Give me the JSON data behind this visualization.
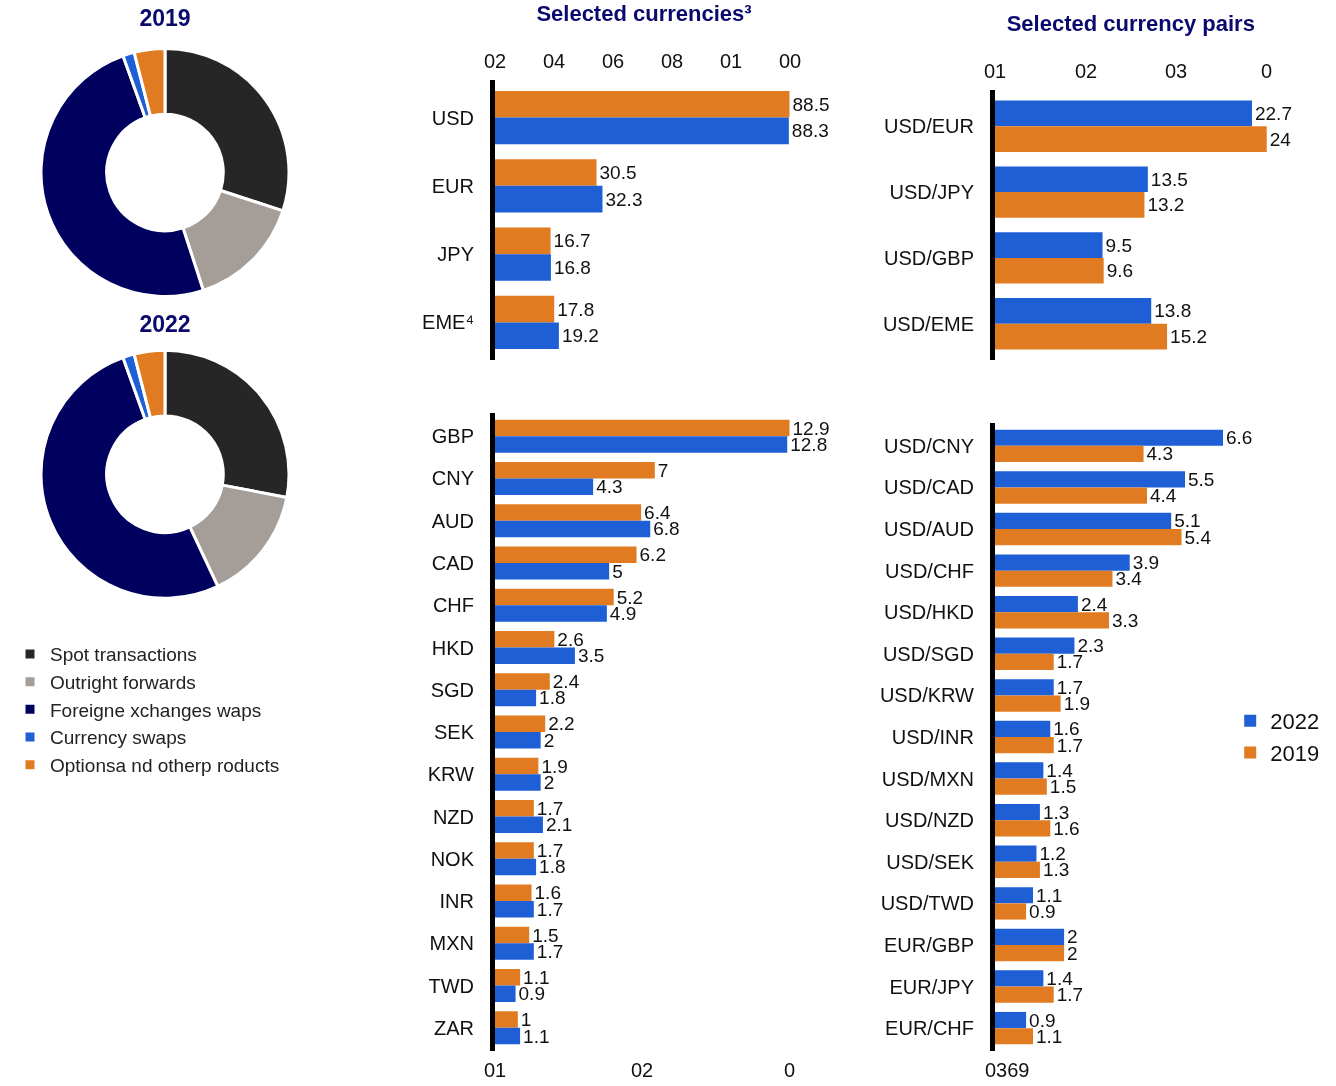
{
  "chart_data": [
    {
      "type": "donut",
      "title": "2019",
      "categories": [
        null,
        null,
        null,
        null,
        null
      ],
      "values": [
        30,
        15,
        49.5,
        1.5,
        4
      ],
      "colors": [
        "#262626",
        "#a59d98",
        "#00005e",
        "#1f5fd6",
        "#e07b21"
      ],
      "legend": false
    },
    {
      "type": "donut",
      "title": "2022",
      "categories": [
        "Spot transactions",
        "Outright forwards",
        "Foreigne xchanges waps",
        "Currency swaps",
        "Optionsa nd otherp roducts"
      ],
      "values": [
        28,
        15,
        51.5,
        1.5,
        4
      ],
      "colors": [
        "#262626",
        "#a59d98",
        "#00005e",
        "#1f5fd6",
        "#e07b21"
      ],
      "legend": "bottom"
    },
    {
      "type": "bar",
      "orientation": "horizontal",
      "title": "Selected currencies³",
      "categories": [
        "USD",
        "EUR",
        "JPY",
        "EME⁴"
      ],
      "series": [
        {
          "color": "#e07b21",
          "values": [
            88.5,
            30.5,
            16.7,
            17.8
          ]
        },
        {
          "color": "#1f5fd6",
          "values": [
            88.3,
            32.3,
            16.8,
            19.2
          ]
        }
      ],
      "annotations": [
        "02",
        "04",
        "06",
        "08",
        "01",
        "00"
      ],
      "data_labels": true,
      "legend": false
    },
    {
      "type": "bar",
      "orientation": "horizontal",
      "title": "Selected currency pairs",
      "categories": [
        "USD/EUR",
        "USD/JPY",
        "USD/GBP",
        "USD/EME"
      ],
      "series": [
        {
          "color": "#1f5fd6",
          "values": [
            22.7,
            13.5,
            9.5,
            13.8
          ]
        },
        {
          "color": "#e07b21",
          "values": [
            24,
            13.2,
            9.6,
            15.2
          ]
        }
      ],
      "annotations": [
        "01",
        "02",
        "03",
        "0"
      ],
      "data_labels": true,
      "legend": false
    },
    {
      "type": "bar",
      "orientation": "horizontal",
      "categories": [
        "GBP",
        "CNY",
        "AUD",
        "CAD",
        "CHF",
        "HKD",
        "SGD",
        "SEK",
        "KRW",
        "NZD",
        "NOK",
        "INR",
        "MXN",
        "TWD",
        "ZAR"
      ],
      "series": [
        {
          "color": "#e07b21",
          "values": [
            12.9,
            7,
            6.4,
            6.2,
            5.2,
            2.6,
            2.4,
            2.2,
            1.9,
            1.7,
            1.7,
            1.6,
            1.5,
            1.1,
            1
          ]
        },
        {
          "color": "#1f5fd6",
          "values": [
            12.8,
            4.3,
            6.8,
            5,
            4.9,
            3.5,
            1.8,
            2,
            2,
            2.1,
            1.8,
            1.7,
            1.7,
            0.9,
            1.1
          ]
        }
      ],
      "annotations": [
        "01",
        "02",
        "0"
      ],
      "data_labels": true,
      "legend": false
    },
    {
      "type": "bar",
      "orientation": "horizontal",
      "categories": [
        "USD/CNY",
        "USD/CAD",
        "USD/AUD",
        "USD/CHF",
        "USD/HKD",
        "USD/SGD",
        "USD/KRW",
        "USD/INR",
        "USD/MXN",
        "USD/NZD",
        "USD/SEK",
        "USD/TWD",
        "EUR/GBP",
        "EUR/JPY",
        "EUR/CHF"
      ],
      "series": [
        {
          "name": "2022",
          "color": "#1f5fd6",
          "values": [
            6.6,
            5.5,
            5.1,
            3.9,
            2.4,
            2.3,
            1.7,
            1.6,
            1.4,
            1.3,
            1.2,
            1.1,
            2,
            1.4,
            0.9
          ]
        },
        {
          "name": "2019",
          "color": "#e07b21",
          "values": [
            4.3,
            4.4,
            5.4,
            3.4,
            3.3,
            1.7,
            1.9,
            1.7,
            1.5,
            1.6,
            1.3,
            0.9,
            2,
            1.7,
            1.1
          ]
        }
      ],
      "annotations": [
        "0369"
      ],
      "data_labels": true,
      "legend": "right"
    }
  ]
}
